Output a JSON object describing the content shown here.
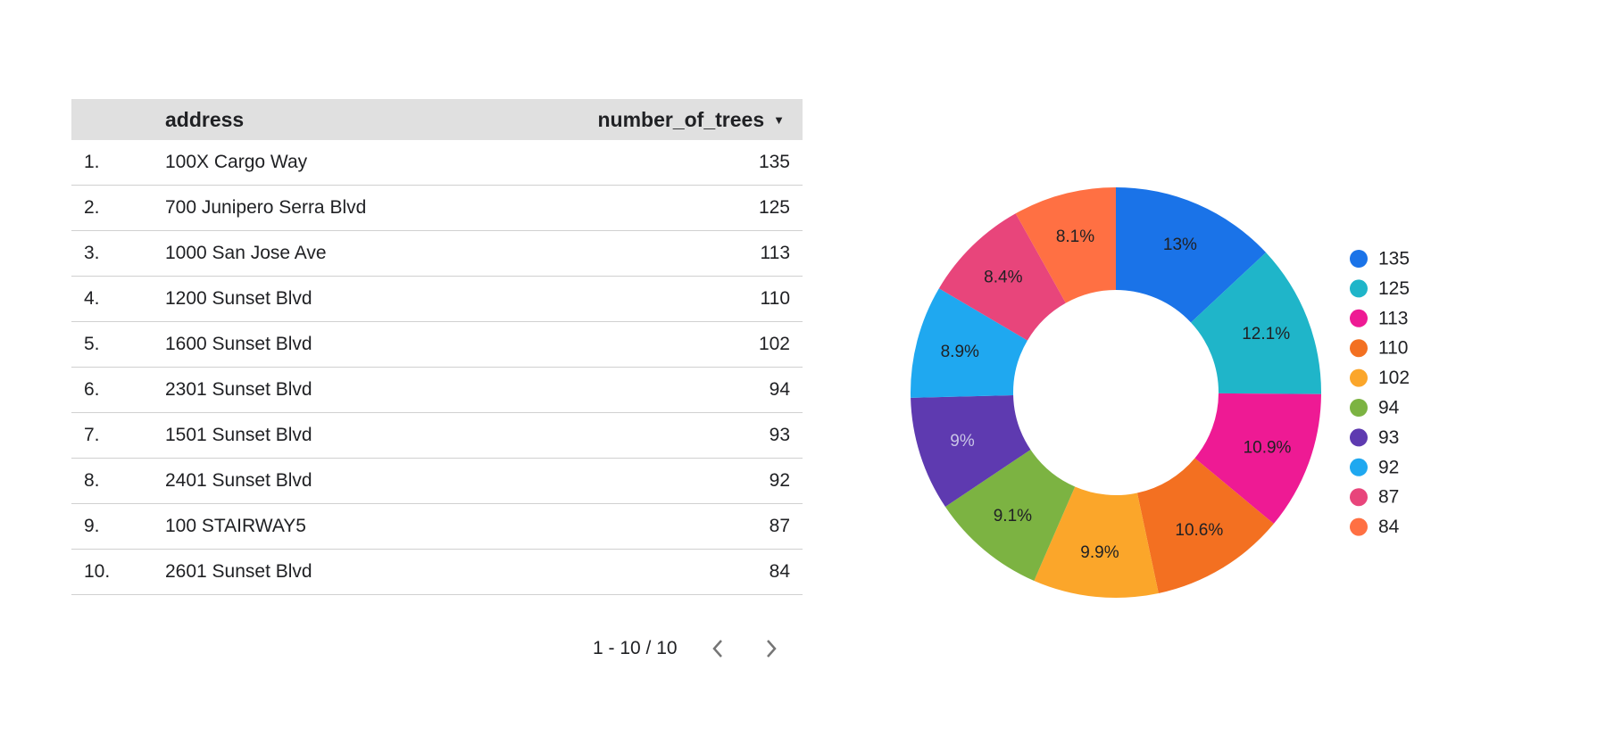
{
  "table": {
    "columns": {
      "index": "",
      "address": "address",
      "number": "number_of_trees"
    },
    "rows": [
      {
        "idx": "1.",
        "address": "100X Cargo Way",
        "number": "135"
      },
      {
        "idx": "2.",
        "address": "700 Junipero Serra Blvd",
        "number": "125"
      },
      {
        "idx": "3.",
        "address": "1000 San Jose Ave",
        "number": "113"
      },
      {
        "idx": "4.",
        "address": "1200 Sunset Blvd",
        "number": "110"
      },
      {
        "idx": "5.",
        "address": "1600 Sunset Blvd",
        "number": "102"
      },
      {
        "idx": "6.",
        "address": "2301 Sunset Blvd",
        "number": "94"
      },
      {
        "idx": "7.",
        "address": "1501 Sunset Blvd",
        "number": "93"
      },
      {
        "idx": "8.",
        "address": "2401 Sunset Blvd",
        "number": "92"
      },
      {
        "idx": "9.",
        "address": "100 STAIRWAY5",
        "number": "87"
      },
      {
        "idx": "10.",
        "address": "2601 Sunset Blvd",
        "number": "84"
      }
    ],
    "sort_icon": "sort-descending-icon",
    "pagination": {
      "label": "1 - 10 / 10",
      "prev_icon": "chevron-left-icon",
      "next_icon": "chevron-right-icon"
    }
  },
  "chart_data": {
    "type": "pie",
    "donut": true,
    "categories": [
      "135",
      "125",
      "113",
      "110",
      "102",
      "94",
      "93",
      "92",
      "87",
      "84"
    ],
    "values": [
      135,
      125,
      113,
      110,
      102,
      94,
      93,
      92,
      87,
      84
    ],
    "percent_labels": [
      "13%",
      "12.1%",
      "10.9%",
      "10.6%",
      "9.9%",
      "9.1%",
      "9%",
      "8.9%",
      "8.4%",
      "8.1%"
    ],
    "colors": [
      "#1a73e8",
      "#1fb5c9",
      "#ee1a94",
      "#f37021",
      "#fba62a",
      "#7cb342",
      "#5e3ab0",
      "#1fa8f0",
      "#e8457b",
      "#ff7043"
    ],
    "label_colors": [
      "#202124",
      "#202124",
      "#202124",
      "#202124",
      "#202124",
      "#202124",
      "#c9c4e6",
      "#202124",
      "#202124",
      "#202124"
    ],
    "legend_position": "right",
    "title": ""
  }
}
